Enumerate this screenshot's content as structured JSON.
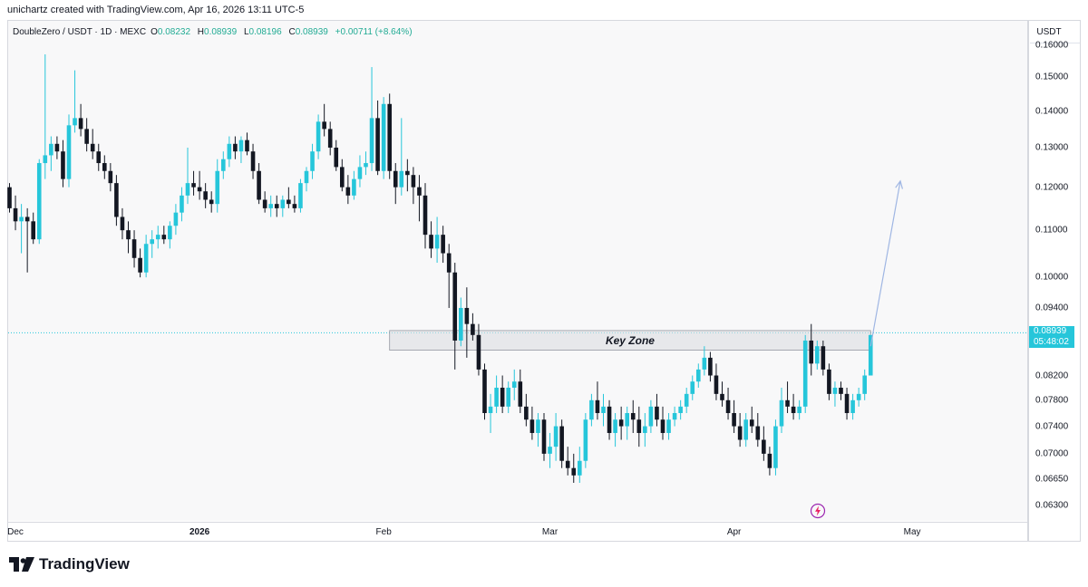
{
  "header": {
    "credit": "unichartz created with TradingView.com, Apr 16, 2026 13:11 UTC-5"
  },
  "legend": {
    "symbol": "DoubleZero / USDT · 1D · MEXC",
    "o_label": "O",
    "o_value": "0.08232",
    "h_label": "H",
    "h_value": "0.08939",
    "l_label": "L",
    "l_value": "0.08196",
    "c_label": "C",
    "c_value": "0.08939",
    "change": "+0.00711 (+8.64%)"
  },
  "price_scale": {
    "currency": "USDT",
    "last_price": "0.08939",
    "countdown": "05:48:02"
  },
  "brand": {
    "logo_text": "TradingView"
  },
  "colors": {
    "up": "#26c6da",
    "down": "#131722",
    "zone_fill": "#dcdde1",
    "arrow": "#9fb6e3",
    "badge": "#26c6da"
  },
  "icons": {
    "snapshot": "lightning-icon",
    "logo": "tradingview-logo-icon"
  },
  "chart_data": {
    "type": "candlestick",
    "title": "DoubleZero / USDT · 1D · MEXC",
    "y_scale": "log",
    "ylim": [
      0.061,
      0.168
    ],
    "yticks": [
      "0.16000",
      "0.15000",
      "0.14000",
      "0.13000",
      "0.12000",
      "0.11000",
      "0.10000",
      "0.09400",
      "0.08939",
      "0.08200",
      "0.07800",
      "0.07400",
      "0.07000",
      "0.06650",
      "0.06300"
    ],
    "x_axis_labels": [
      "Dec",
      "2026",
      "Feb",
      "Mar",
      "Apr",
      "May"
    ],
    "x_axis_label_dates": [
      "2025-12-01",
      "2026-01-01",
      "2026-02-01",
      "2026-03-01",
      "2026-04-01",
      "2026-05-01"
    ],
    "first_candle_date": "2025-11-30",
    "last_price": 0.08939,
    "ohlc": [
      [
        0.12,
        0.121,
        0.114,
        0.115
      ],
      [
        0.115,
        0.118,
        0.11,
        0.112
      ],
      [
        0.112,
        0.116,
        0.105,
        0.113
      ],
      [
        0.113,
        0.115,
        0.101,
        0.112
      ],
      [
        0.112,
        0.114,
        0.107,
        0.108
      ],
      [
        0.108,
        0.127,
        0.107,
        0.126
      ],
      [
        0.126,
        0.157,
        0.122,
        0.128
      ],
      [
        0.128,
        0.133,
        0.124,
        0.131
      ],
      [
        0.131,
        0.133,
        0.127,
        0.129
      ],
      [
        0.129,
        0.132,
        0.12,
        0.122
      ],
      [
        0.122,
        0.139,
        0.12,
        0.136
      ],
      [
        0.136,
        0.152,
        0.134,
        0.138
      ],
      [
        0.138,
        0.142,
        0.133,
        0.135
      ],
      [
        0.135,
        0.138,
        0.129,
        0.131
      ],
      [
        0.131,
        0.135,
        0.127,
        0.129
      ],
      [
        0.129,
        0.131,
        0.124,
        0.126
      ],
      [
        0.126,
        0.128,
        0.122,
        0.124
      ],
      [
        0.124,
        0.126,
        0.119,
        0.121
      ],
      [
        0.121,
        0.123,
        0.111,
        0.113
      ],
      [
        0.113,
        0.115,
        0.108,
        0.11
      ],
      [
        0.11,
        0.112,
        0.105,
        0.108
      ],
      [
        0.108,
        0.11,
        0.102,
        0.104
      ],
      [
        0.104,
        0.106,
        0.1,
        0.101
      ],
      [
        0.101,
        0.109,
        0.1,
        0.107
      ],
      [
        0.107,
        0.11,
        0.104,
        0.108
      ],
      [
        0.108,
        0.111,
        0.106,
        0.109
      ],
      [
        0.109,
        0.111,
        0.107,
        0.108
      ],
      [
        0.108,
        0.112,
        0.106,
        0.111
      ],
      [
        0.111,
        0.116,
        0.109,
        0.114
      ],
      [
        0.114,
        0.12,
        0.112,
        0.118
      ],
      [
        0.118,
        0.13,
        0.116,
        0.121
      ],
      [
        0.121,
        0.124,
        0.118,
        0.12
      ],
      [
        0.12,
        0.124,
        0.117,
        0.119
      ],
      [
        0.119,
        0.121,
        0.115,
        0.117
      ],
      [
        0.117,
        0.119,
        0.114,
        0.116
      ],
      [
        0.116,
        0.127,
        0.114,
        0.124
      ],
      [
        0.124,
        0.129,
        0.122,
        0.127
      ],
      [
        0.127,
        0.133,
        0.125,
        0.131
      ],
      [
        0.131,
        0.133,
        0.127,
        0.129
      ],
      [
        0.129,
        0.133,
        0.126,
        0.132
      ],
      [
        0.132,
        0.134,
        0.128,
        0.129
      ],
      [
        0.129,
        0.131,
        0.122,
        0.124
      ],
      [
        0.124,
        0.126,
        0.116,
        0.117
      ],
      [
        0.117,
        0.119,
        0.114,
        0.115
      ],
      [
        0.115,
        0.118,
        0.113,
        0.116
      ],
      [
        0.116,
        0.118,
        0.113,
        0.115
      ],
      [
        0.115,
        0.118,
        0.113,
        0.117
      ],
      [
        0.117,
        0.12,
        0.115,
        0.116
      ],
      [
        0.116,
        0.118,
        0.114,
        0.115
      ],
      [
        0.115,
        0.122,
        0.114,
        0.121
      ],
      [
        0.121,
        0.125,
        0.119,
        0.124
      ],
      [
        0.124,
        0.131,
        0.122,
        0.129
      ],
      [
        0.129,
        0.139,
        0.127,
        0.137
      ],
      [
        0.137,
        0.142,
        0.133,
        0.135
      ],
      [
        0.135,
        0.137,
        0.128,
        0.13
      ],
      [
        0.13,
        0.132,
        0.124,
        0.125
      ],
      [
        0.125,
        0.127,
        0.119,
        0.12
      ],
      [
        0.12,
        0.123,
        0.116,
        0.118
      ],
      [
        0.118,
        0.124,
        0.117,
        0.122
      ],
      [
        0.122,
        0.128,
        0.12,
        0.125
      ],
      [
        0.125,
        0.129,
        0.123,
        0.126
      ],
      [
        0.126,
        0.153,
        0.124,
        0.138
      ],
      [
        0.138,
        0.143,
        0.123,
        0.124
      ],
      [
        0.124,
        0.144,
        0.122,
        0.142
      ],
      [
        0.142,
        0.145,
        0.122,
        0.124
      ],
      [
        0.124,
        0.126,
        0.116,
        0.12
      ],
      [
        0.12,
        0.138,
        0.118,
        0.124
      ],
      [
        0.124,
        0.127,
        0.119,
        0.123
      ],
      [
        0.123,
        0.125,
        0.116,
        0.12
      ],
      [
        0.12,
        0.123,
        0.112,
        0.118
      ],
      [
        0.118,
        0.121,
        0.106,
        0.109
      ],
      [
        0.109,
        0.112,
        0.104,
        0.106
      ],
      [
        0.106,
        0.113,
        0.103,
        0.109
      ],
      [
        0.109,
        0.111,
        0.103,
        0.105
      ],
      [
        0.105,
        0.107,
        0.094,
        0.101
      ],
      [
        0.101,
        0.103,
        0.083,
        0.088
      ],
      [
        0.088,
        0.096,
        0.087,
        0.094
      ],
      [
        0.094,
        0.098,
        0.085,
        0.091
      ],
      [
        0.091,
        0.093,
        0.088,
        0.089
      ],
      [
        0.089,
        0.091,
        0.082,
        0.083
      ],
      [
        0.083,
        0.084,
        0.075,
        0.076
      ],
      [
        0.076,
        0.079,
        0.073,
        0.077
      ],
      [
        0.077,
        0.082,
        0.076,
        0.08
      ],
      [
        0.08,
        0.082,
        0.076,
        0.077
      ],
      [
        0.077,
        0.081,
        0.076,
        0.08
      ],
      [
        0.08,
        0.083,
        0.078,
        0.081
      ],
      [
        0.081,
        0.083,
        0.076,
        0.077
      ],
      [
        0.077,
        0.079,
        0.074,
        0.075
      ],
      [
        0.075,
        0.077,
        0.072,
        0.073
      ],
      [
        0.073,
        0.076,
        0.071,
        0.075
      ],
      [
        0.075,
        0.076,
        0.069,
        0.07
      ],
      [
        0.07,
        0.073,
        0.068,
        0.071
      ],
      [
        0.071,
        0.076,
        0.069,
        0.074
      ],
      [
        0.074,
        0.075,
        0.068,
        0.069
      ],
      [
        0.069,
        0.071,
        0.067,
        0.068
      ],
      [
        0.068,
        0.07,
        0.066,
        0.067
      ],
      [
        0.067,
        0.071,
        0.066,
        0.069
      ],
      [
        0.069,
        0.076,
        0.068,
        0.075
      ],
      [
        0.075,
        0.079,
        0.074,
        0.078
      ],
      [
        0.078,
        0.081,
        0.075,
        0.076
      ],
      [
        0.076,
        0.079,
        0.074,
        0.077
      ],
      [
        0.077,
        0.078,
        0.072,
        0.073
      ],
      [
        0.073,
        0.076,
        0.071,
        0.075
      ],
      [
        0.075,
        0.077,
        0.072,
        0.074
      ],
      [
        0.074,
        0.077,
        0.072,
        0.076
      ],
      [
        0.076,
        0.078,
        0.073,
        0.075
      ],
      [
        0.075,
        0.077,
        0.071,
        0.073
      ],
      [
        0.073,
        0.076,
        0.071,
        0.074
      ],
      [
        0.074,
        0.078,
        0.073,
        0.077
      ],
      [
        0.077,
        0.079,
        0.074,
        0.075
      ],
      [
        0.075,
        0.077,
        0.072,
        0.073
      ],
      [
        0.073,
        0.076,
        0.072,
        0.075
      ],
      [
        0.075,
        0.077,
        0.074,
        0.076
      ],
      [
        0.076,
        0.078,
        0.075,
        0.077
      ],
      [
        0.077,
        0.08,
        0.076,
        0.079
      ],
      [
        0.079,
        0.082,
        0.078,
        0.081
      ],
      [
        0.081,
        0.084,
        0.08,
        0.083
      ],
      [
        0.083,
        0.087,
        0.082,
        0.085
      ],
      [
        0.085,
        0.086,
        0.081,
        0.082
      ],
      [
        0.082,
        0.084,
        0.078,
        0.079
      ],
      [
        0.079,
        0.081,
        0.077,
        0.078
      ],
      [
        0.078,
        0.08,
        0.075,
        0.076
      ],
      [
        0.076,
        0.078,
        0.073,
        0.074
      ],
      [
        0.074,
        0.076,
        0.071,
        0.072
      ],
      [
        0.072,
        0.076,
        0.071,
        0.075
      ],
      [
        0.075,
        0.077,
        0.073,
        0.074
      ],
      [
        0.074,
        0.076,
        0.071,
        0.072
      ],
      [
        0.072,
        0.074,
        0.069,
        0.07
      ],
      [
        0.07,
        0.071,
        0.067,
        0.068
      ],
      [
        0.068,
        0.075,
        0.067,
        0.074
      ],
      [
        0.074,
        0.08,
        0.073,
        0.078
      ],
      [
        0.078,
        0.081,
        0.076,
        0.077
      ],
      [
        0.077,
        0.079,
        0.075,
        0.076
      ],
      [
        0.076,
        0.078,
        0.075,
        0.077
      ],
      [
        0.077,
        0.089,
        0.076,
        0.088
      ],
      [
        0.088,
        0.091,
        0.082,
        0.084
      ],
      [
        0.084,
        0.088,
        0.083,
        0.087
      ],
      [
        0.087,
        0.088,
        0.082,
        0.083
      ],
      [
        0.083,
        0.084,
        0.078,
        0.079
      ],
      [
        0.079,
        0.081,
        0.077,
        0.08
      ],
      [
        0.08,
        0.081,
        0.078,
        0.079
      ],
      [
        0.079,
        0.08,
        0.075,
        0.076
      ],
      [
        0.076,
        0.079,
        0.075,
        0.078
      ],
      [
        0.078,
        0.08,
        0.077,
        0.079
      ],
      [
        0.079,
        0.083,
        0.078,
        0.082
      ],
      [
        0.082,
        0.089,
        0.082,
        0.089
      ]
    ],
    "annotations": {
      "zone_label": "Key Zone",
      "zone_low": 0.0863,
      "zone_high": 0.0898,
      "zone_start_date": "2026-02-02",
      "zone_end_date": "2026-04-24",
      "arrow_from": {
        "date": "2026-04-24",
        "price": 0.087
      },
      "arrow_to": {
        "date": "2026-04-29",
        "price": 0.1215
      }
    }
  }
}
